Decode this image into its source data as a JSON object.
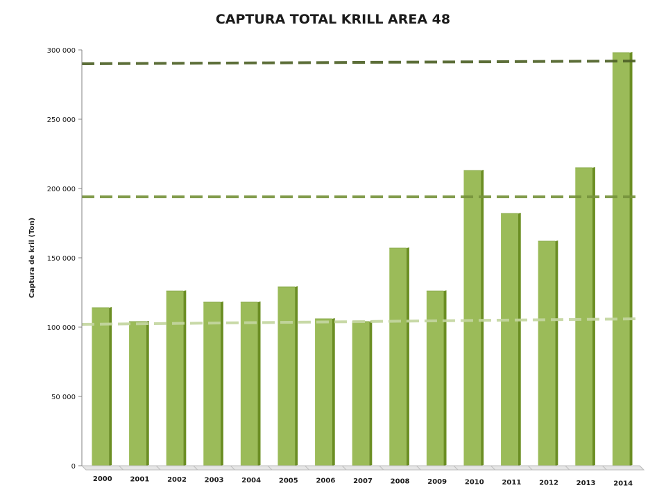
{
  "chart_data": {
    "type": "bar",
    "title": "CAPTURA TOTAL KRILL AREA 48",
    "xlabel": "",
    "ylabel": "Captura de kril (Ton)",
    "categories": [
      "2000",
      "2001",
      "2002",
      "2003",
      "2004",
      "2005",
      "2006",
      "2007",
      "2008",
      "2009",
      "2010",
      "2011",
      "2012",
      "2013",
      "2014"
    ],
    "values": [
      114000,
      104000,
      126000,
      118000,
      118000,
      129000,
      106000,
      104000,
      157000,
      126000,
      213000,
      182000,
      162000,
      215000,
      298000
    ],
    "ylim": [
      0,
      300000
    ],
    "yticks": [
      0,
      50000,
      100000,
      150000,
      200000,
      250000,
      300000
    ],
    "ytick_labels": [
      "0",
      "50 000",
      "100 000",
      "150 000",
      "200 000",
      "250 000",
      "300 000"
    ],
    "reference_lines": [
      {
        "y_start": 102000,
        "y_end": 106000,
        "color": "#c4d6a0"
      },
      {
        "y_start": 194000,
        "y_end": 194000,
        "color": "#77933c"
      },
      {
        "y_start": 290000,
        "y_end": 292000,
        "color": "#4f6228"
      }
    ],
    "grid": false,
    "legend": "none",
    "colors": {
      "bar": "#9bbb59",
      "bar_side": "#6b8e23",
      "axis": "#808080"
    }
  }
}
